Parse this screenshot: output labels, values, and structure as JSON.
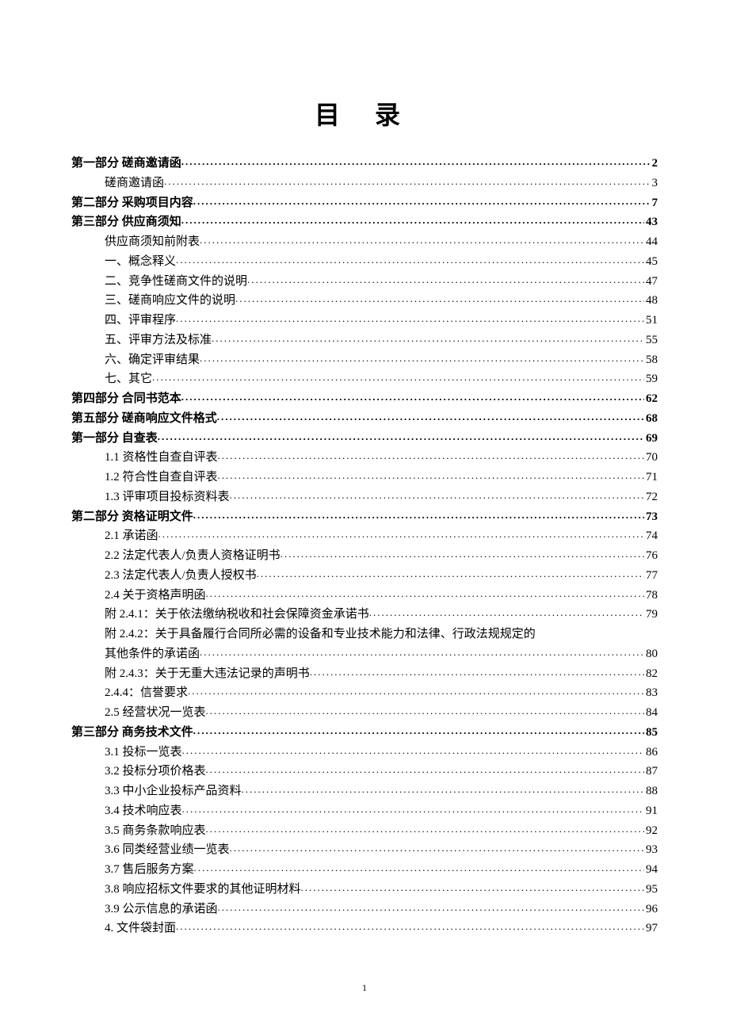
{
  "title": "目 录",
  "footer_page_number": "1",
  "entries": [
    {
      "level": 0,
      "label": "第一部分  磋商邀请函",
      "page": "2"
    },
    {
      "level": 1,
      "label": "磋商邀请函",
      "page": "3"
    },
    {
      "level": 0,
      "label": "第二部分  采购项目内容",
      "page": "7"
    },
    {
      "level": 0,
      "label": "第三部分  供应商须知",
      "page": "43"
    },
    {
      "level": 1,
      "label": "供应商须知前附表",
      "page": "44"
    },
    {
      "level": 1,
      "label": "一、概念释义",
      "page": "45"
    },
    {
      "level": 1,
      "label": "二、竞争性磋商文件的说明",
      "page": "47"
    },
    {
      "level": 1,
      "label": "三、磋商响应文件的说明",
      "page": "48"
    },
    {
      "level": 1,
      "label": "四、评审程序",
      "page": "51"
    },
    {
      "level": 1,
      "label": "五、评审方法及标准",
      "page": "55"
    },
    {
      "level": 1,
      "label": "六、确定评审结果",
      "page": "58"
    },
    {
      "level": 1,
      "label": "七、其它",
      "page": "59"
    },
    {
      "level": 0,
      "label": "第四部分  合同书范本",
      "page": "62"
    },
    {
      "level": 0,
      "label": "第五部分  磋商响应文件格式",
      "page": "68"
    },
    {
      "level": 0,
      "label": "第一部分    自查表",
      "page": "69"
    },
    {
      "level": 1,
      "label": "1.1 资格性自查自评表",
      "page": "70"
    },
    {
      "level": 1,
      "label": "1.2 符合性自查自评表",
      "page": "71"
    },
    {
      "level": 1,
      "label": "1.3 评审项目投标资料表",
      "page": "72"
    },
    {
      "level": 0,
      "label": "第二部分    资格证明文件",
      "page": "73"
    },
    {
      "level": 1,
      "label": "2.1 承诺函",
      "page": "74"
    },
    {
      "level": 1,
      "label": "2.2 法定代表人/负责人资格证明书",
      "page": "76"
    },
    {
      "level": 1,
      "label": "2.3 法定代表人/负责人授权书",
      "page": "77"
    },
    {
      "level": 1,
      "label": "2.4 关于资格声明函",
      "page": "78"
    },
    {
      "level": 1,
      "label": "附 2.4.1：关于依法缴纳税收和社会保障资金承诺书",
      "page": "79"
    },
    {
      "level": 1,
      "label": "附 2.4.2：关于具备履行合同所必需的设备和专业技术能力和法律、行政法规规定的其他条件的承诺函",
      "page": "80",
      "wrap": true
    },
    {
      "level": 1,
      "label": "附 2.4.3：关于无重大违法记录的声明书",
      "page": "82"
    },
    {
      "level": 1,
      "label": "2.4.4：信誉要求",
      "page": "83"
    },
    {
      "level": 1,
      "label": "2.5 经营状况一览表",
      "page": "84"
    },
    {
      "level": 0,
      "label": "第三部分      商务技术文件",
      "page": "85"
    },
    {
      "level": 1,
      "label": "3.1 投标一览表",
      "page": "86"
    },
    {
      "level": 1,
      "label": "3.2 投标分项价格表",
      "page": "87"
    },
    {
      "level": 1,
      "label": "3.3 中小企业投标产品资料",
      "page": "88"
    },
    {
      "level": 1,
      "label": "3.4 技术响应表",
      "page": "91"
    },
    {
      "level": 1,
      "label": "3.5 商务条款响应表",
      "page": "92"
    },
    {
      "level": 1,
      "label": "3.6 同类经营业绩一览表",
      "page": "93"
    },
    {
      "level": 1,
      "label": "3.7 售后服务方案",
      "page": "94"
    },
    {
      "level": 1,
      "label": "3.8 响应招标文件要求的其他证明材料",
      "page": "95"
    },
    {
      "level": 1,
      "label": "3.9 公示信息的承诺函",
      "page": "96"
    },
    {
      "level": 1,
      "label": "4. 文件袋封面",
      "page": "97"
    }
  ]
}
